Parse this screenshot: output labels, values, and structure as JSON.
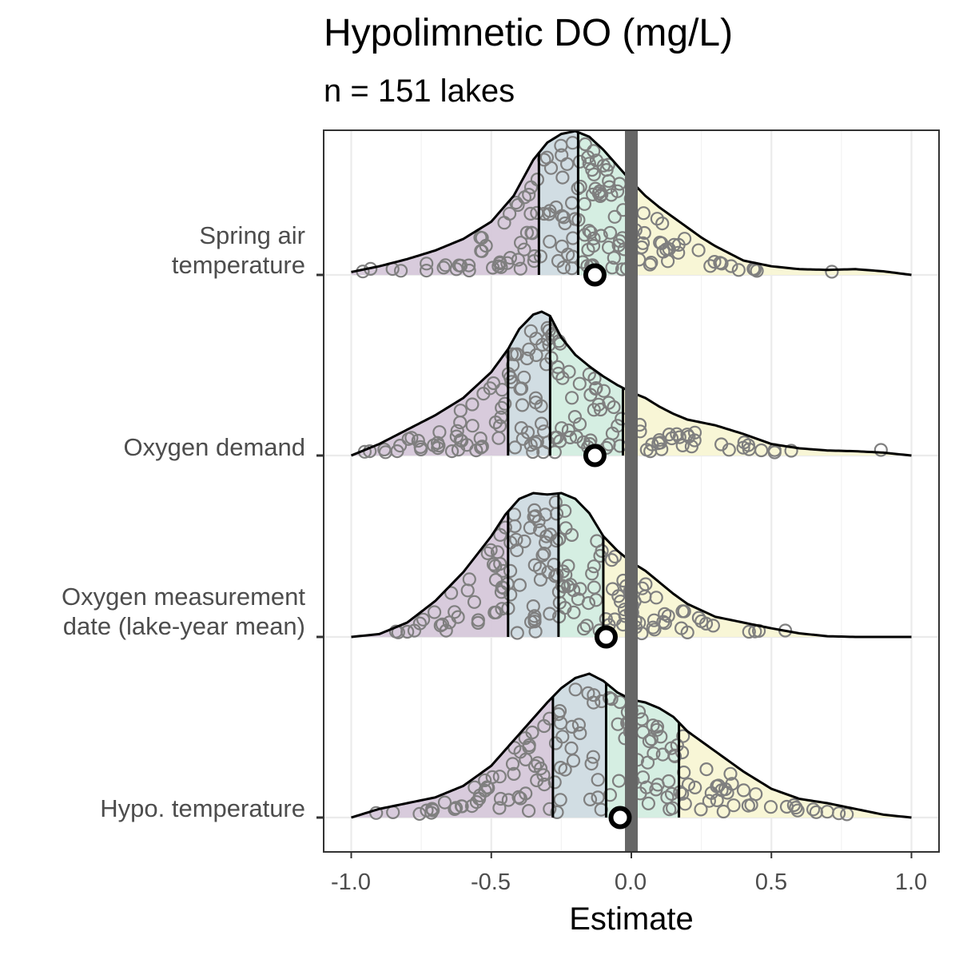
{
  "chart_data": {
    "type": "ridgeline",
    "title": "Hypolimnetic DO (mg/L)",
    "subtitle": "n = 151 lakes",
    "xlabel": "Estimate",
    "xlim": [
      -1.0,
      1.0
    ],
    "xticks": [
      "-1.0",
      "-0.5",
      "0.0",
      "0.5",
      "1.0"
    ],
    "xtick_values": [
      -1.0,
      -0.5,
      0.0,
      0.5,
      1.0
    ],
    "reference_line_x": 0.0,
    "grid": true,
    "quantile_fill_colors": [
      "#d6c8da",
      "#cfdbe2",
      "#d3ede0",
      "#f8f5d4"
    ],
    "point_edge_color": "#7f7f7f",
    "series": [
      {
        "label_lines": [
          "Spring air",
          "temperature"
        ],
        "median": -0.13,
        "quartile_lines": [
          -0.33,
          -0.19,
          -0.005
        ],
        "density": [
          [
            -1.0,
            0.02
          ],
          [
            -0.9,
            0.06
          ],
          [
            -0.8,
            0.11
          ],
          [
            -0.7,
            0.17
          ],
          [
            -0.6,
            0.25
          ],
          [
            -0.5,
            0.37
          ],
          [
            -0.42,
            0.55
          ],
          [
            -0.35,
            0.8
          ],
          [
            -0.3,
            0.92
          ],
          [
            -0.25,
            0.98
          ],
          [
            -0.2,
            1.0
          ],
          [
            -0.15,
            0.96
          ],
          [
            -0.1,
            0.87
          ],
          [
            -0.05,
            0.76
          ],
          [
            0.0,
            0.65
          ],
          [
            0.05,
            0.55
          ],
          [
            0.1,
            0.47
          ],
          [
            0.15,
            0.4
          ],
          [
            0.2,
            0.33
          ],
          [
            0.25,
            0.26
          ],
          [
            0.3,
            0.2
          ],
          [
            0.35,
            0.15
          ],
          [
            0.4,
            0.1
          ],
          [
            0.5,
            0.06
          ],
          [
            0.6,
            0.04
          ],
          [
            0.7,
            0.035
          ],
          [
            0.8,
            0.04
          ],
          [
            0.9,
            0.025
          ],
          [
            1.0,
            0.0
          ]
        ]
      },
      {
        "label_lines": [
          "Oxygen demand"
        ],
        "median": -0.13,
        "quartile_lines": [
          -0.44,
          -0.29,
          -0.03
        ],
        "density": [
          [
            -1.0,
            0.0
          ],
          [
            -0.9,
            0.08
          ],
          [
            -0.8,
            0.18
          ],
          [
            -0.7,
            0.28
          ],
          [
            -0.6,
            0.4
          ],
          [
            -0.5,
            0.58
          ],
          [
            -0.44,
            0.74
          ],
          [
            -0.4,
            0.88
          ],
          [
            -0.35,
            0.98
          ],
          [
            -0.32,
            1.0
          ],
          [
            -0.29,
            0.97
          ],
          [
            -0.25,
            0.82
          ],
          [
            -0.2,
            0.7
          ],
          [
            -0.15,
            0.62
          ],
          [
            -0.1,
            0.55
          ],
          [
            -0.05,
            0.49
          ],
          [
            0.0,
            0.44
          ],
          [
            0.05,
            0.4
          ],
          [
            0.1,
            0.34
          ],
          [
            0.15,
            0.29
          ],
          [
            0.2,
            0.25
          ],
          [
            0.25,
            0.23
          ],
          [
            0.3,
            0.21
          ],
          [
            0.35,
            0.18
          ],
          [
            0.4,
            0.15
          ],
          [
            0.5,
            0.08
          ],
          [
            0.6,
            0.05
          ],
          [
            0.7,
            0.035
          ],
          [
            0.8,
            0.03
          ],
          [
            0.9,
            0.02
          ],
          [
            1.0,
            0.0
          ]
        ]
      },
      {
        "label_lines": [
          "Oxygen measurement",
          "date (lake-year mean)"
        ],
        "median": -0.09,
        "quartile_lines": [
          -0.44,
          -0.26,
          -0.1
        ],
        "density": [
          [
            -1.0,
            0.0
          ],
          [
            -0.9,
            0.02
          ],
          [
            -0.8,
            0.1
          ],
          [
            -0.7,
            0.25
          ],
          [
            -0.6,
            0.45
          ],
          [
            -0.5,
            0.7
          ],
          [
            -0.45,
            0.85
          ],
          [
            -0.4,
            0.96
          ],
          [
            -0.35,
            1.0
          ],
          [
            -0.3,
            0.99
          ],
          [
            -0.25,
            1.0
          ],
          [
            -0.2,
            0.96
          ],
          [
            -0.15,
            0.86
          ],
          [
            -0.1,
            0.7
          ],
          [
            -0.05,
            0.6
          ],
          [
            0.0,
            0.52
          ],
          [
            0.05,
            0.46
          ],
          [
            0.1,
            0.38
          ],
          [
            0.15,
            0.3
          ],
          [
            0.2,
            0.23
          ],
          [
            0.3,
            0.14
          ],
          [
            0.4,
            0.1
          ],
          [
            0.5,
            0.06
          ],
          [
            0.6,
            0.025
          ],
          [
            0.7,
            0.005
          ],
          [
            0.8,
            0.0
          ],
          [
            1.0,
            0.0
          ]
        ]
      },
      {
        "label_lines": [
          "Hypo. temperature"
        ],
        "median": -0.04,
        "quartile_lines": [
          -0.28,
          -0.09,
          0.17
        ],
        "density": [
          [
            -1.0,
            0.0
          ],
          [
            -0.9,
            0.06
          ],
          [
            -0.8,
            0.1
          ],
          [
            -0.7,
            0.14
          ],
          [
            -0.6,
            0.22
          ],
          [
            -0.5,
            0.36
          ],
          [
            -0.4,
            0.58
          ],
          [
            -0.3,
            0.8
          ],
          [
            -0.25,
            0.9
          ],
          [
            -0.2,
            0.97
          ],
          [
            -0.15,
            1.0
          ],
          [
            -0.1,
            0.95
          ],
          [
            -0.05,
            0.87
          ],
          [
            0.0,
            0.82
          ],
          [
            0.05,
            0.8
          ],
          [
            0.1,
            0.76
          ],
          [
            0.15,
            0.7
          ],
          [
            0.2,
            0.6
          ],
          [
            0.3,
            0.46
          ],
          [
            0.4,
            0.32
          ],
          [
            0.5,
            0.2
          ],
          [
            0.6,
            0.13
          ],
          [
            0.7,
            0.1
          ],
          [
            0.75,
            0.08
          ],
          [
            0.8,
            0.06
          ],
          [
            0.9,
            0.02
          ],
          [
            1.0,
            0.0
          ]
        ]
      }
    ]
  }
}
